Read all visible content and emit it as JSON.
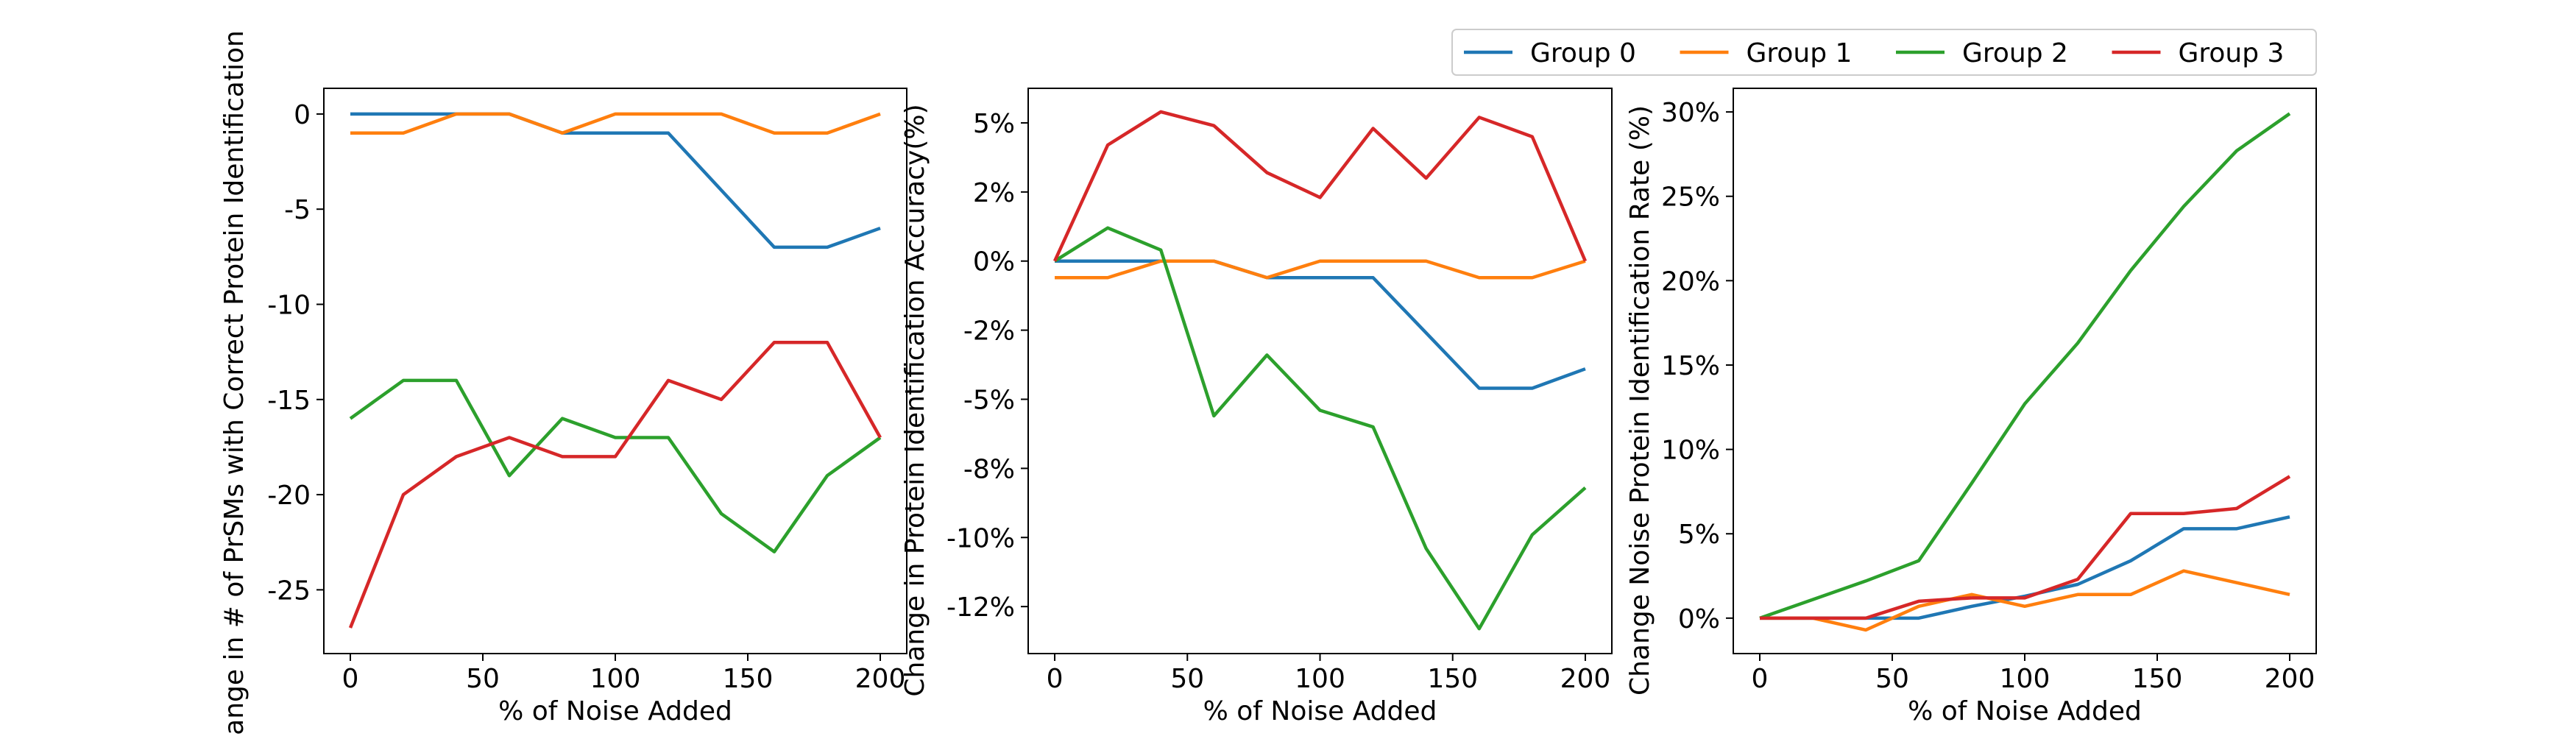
{
  "chart_data": [
    {
      "type": "line",
      "ylabel": "Change in # of PrSMs with Correct Protein Identification",
      "xlabel": "% of Noise Added",
      "x": [
        0,
        20,
        40,
        60,
        80,
        100,
        120,
        140,
        160,
        180,
        200
      ],
      "xlim": [
        -10,
        210
      ],
      "xticks": [
        0,
        50,
        100,
        150,
        200
      ],
      "ylim": [
        -28.35,
        1.35
      ],
      "yticks": [
        -25,
        -20,
        -15,
        -10,
        -5,
        0
      ],
      "series": [
        {
          "name": "Group 0",
          "color": "#1f77b4",
          "values": [
            0,
            0,
            0,
            0,
            -1,
            -1,
            -1,
            -4,
            -7,
            -7,
            -6
          ]
        },
        {
          "name": "Group 1",
          "color": "#ff7f0e",
          "values": [
            -1,
            -1,
            0,
            0,
            -1,
            0,
            0,
            0,
            -1,
            -1,
            0
          ]
        },
        {
          "name": "Group 2",
          "color": "#2ca02c",
          "values": [
            -16,
            -14,
            -14,
            -19,
            -16,
            -17,
            -17,
            -21,
            -23,
            -19,
            -17
          ]
        },
        {
          "name": "Group 3",
          "color": "#d62728",
          "values": [
            -27,
            -20,
            -18,
            -17,
            -18,
            -18,
            -14,
            -15,
            -12,
            -12,
            -17
          ]
        }
      ],
      "legend": false
    },
    {
      "type": "line",
      "ylabel": "Change in Protein Identification Accuracy(%)",
      "xlabel": "% of Noise Added",
      "x": [
        0,
        20,
        40,
        60,
        80,
        100,
        120,
        140,
        160,
        180,
        200
      ],
      "xlim": [
        -10,
        210
      ],
      "xticks": [
        0,
        50,
        100,
        150,
        200
      ],
      "ylim": [
        -14.2,
        6.25
      ],
      "yticks": [
        {
          "value": -12.5,
          "label": "-12%"
        },
        {
          "value": -10,
          "label": "-10%"
        },
        {
          "value": -7.5,
          "label": "-8%"
        },
        {
          "value": -5,
          "label": "-5%"
        },
        {
          "value": -2.5,
          "label": "-2%"
        },
        {
          "value": 0,
          "label": "0%"
        },
        {
          "value": 2.5,
          "label": "2%"
        },
        {
          "value": 5,
          "label": "5%"
        }
      ],
      "series": [
        {
          "name": "Group 0",
          "color": "#1f77b4",
          "values": [
            0,
            0,
            0,
            0,
            -0.6,
            -0.6,
            -0.6,
            -2.6,
            -4.6,
            -4.6,
            -3.9
          ]
        },
        {
          "name": "Group 1",
          "color": "#ff7f0e",
          "values": [
            -0.6,
            -0.6,
            0,
            0,
            -0.6,
            0,
            0,
            0,
            -0.6,
            -0.6,
            0
          ]
        },
        {
          "name": "Group 2",
          "color": "#2ca02c",
          "values": [
            0,
            1.2,
            0.4,
            -5.6,
            -3.4,
            -5.4,
            -6.0,
            -10.4,
            -13.3,
            -9.9,
            -8.2
          ]
        },
        {
          "name": "Group 3",
          "color": "#d62728",
          "values": [
            0,
            4.2,
            5.4,
            4.9,
            3.2,
            2.3,
            4.8,
            3.0,
            5.2,
            4.5,
            0
          ]
        }
      ],
      "legend": false
    },
    {
      "type": "line",
      "ylabel": "Change Noise Protein Identification Rate (%)",
      "xlabel": "% of Noise Added",
      "x": [
        0,
        20,
        40,
        60,
        80,
        100,
        120,
        140,
        160,
        180,
        200
      ],
      "xlim": [
        -10,
        210
      ],
      "xticks": [
        0,
        50,
        100,
        150,
        200
      ],
      "ylim": [
        -2.1,
        31.4
      ],
      "yticks": [
        {
          "value": 0,
          "label": "0%"
        },
        {
          "value": 5,
          "label": "5%"
        },
        {
          "value": 10,
          "label": "10%"
        },
        {
          "value": 15,
          "label": "15%"
        },
        {
          "value": 20,
          "label": "20%"
        },
        {
          "value": 25,
          "label": "25%"
        },
        {
          "value": 30,
          "label": "30%"
        }
      ],
      "series": [
        {
          "name": "Group 0",
          "color": "#1f77b4",
          "values": [
            0,
            0,
            0,
            0,
            0.7,
            1.3,
            2.0,
            3.4,
            5.3,
            5.3,
            6.0
          ]
        },
        {
          "name": "Group 1",
          "color": "#ff7f0e",
          "values": [
            0,
            0,
            -0.7,
            0.7,
            1.4,
            0.7,
            1.4,
            1.4,
            2.8,
            2.1,
            1.4
          ]
        },
        {
          "name": "Group 2",
          "color": "#2ca02c",
          "values": [
            0,
            1.1,
            2.2,
            3.4,
            8.0,
            12.7,
            16.3,
            20.6,
            24.4,
            27.7,
            29.9
          ]
        },
        {
          "name": "Group 3",
          "color": "#d62728",
          "values": [
            0,
            0,
            0,
            1.0,
            1.2,
            1.2,
            2.3,
            6.2,
            6.2,
            6.5,
            8.4
          ]
        }
      ],
      "legend": "above"
    }
  ]
}
